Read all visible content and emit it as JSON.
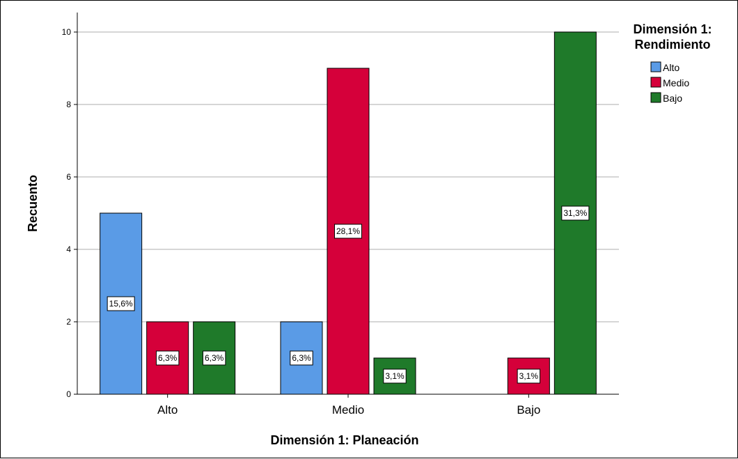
{
  "chart_data": {
    "type": "bar",
    "xlabel": "Dimensión 1: Planeación",
    "ylabel": "Recuento",
    "categories": [
      "Alto",
      "Medio",
      "Bajo"
    ],
    "ylim": [
      0,
      10
    ],
    "yticks": [
      "0",
      "2",
      "4",
      "6",
      "8",
      "10"
    ],
    "grid": true,
    "legend": {
      "title_lines": [
        "Dimensión 1:",
        "Rendimiento"
      ],
      "position": "top-right"
    },
    "series": [
      {
        "name": "Alto",
        "color": "#5a9be6",
        "values": [
          5,
          2,
          0
        ],
        "labels": [
          "15,6%",
          "6,3%",
          ""
        ]
      },
      {
        "name": "Medio",
        "color": "#d5003a",
        "values": [
          2,
          9,
          1
        ],
        "labels": [
          "6,3%",
          "28,1%",
          "3,1%"
        ]
      },
      {
        "name": "Bajo",
        "color": "#1f7a2a",
        "values": [
          2,
          1,
          10
        ],
        "labels": [
          "6,3%",
          "3,1%",
          "31,3%"
        ]
      }
    ]
  }
}
